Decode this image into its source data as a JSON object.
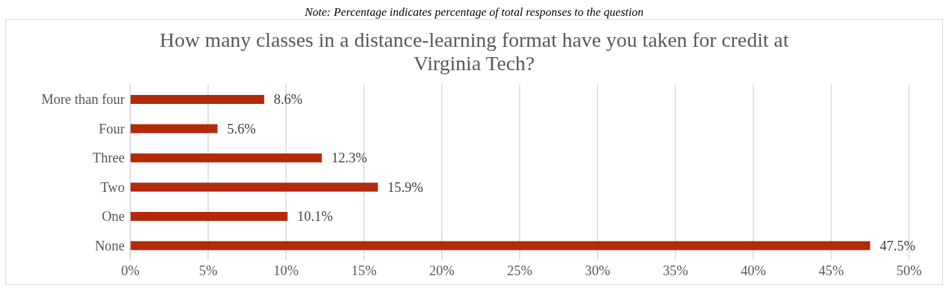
{
  "chart_data": {
    "type": "bar",
    "orientation": "horizontal",
    "title": "How many classes in a distance-learning format have you taken for credit at Virginia Tech?",
    "annotations": [
      "Note: Percentage indicates percentage of total responses to the question"
    ],
    "categories": [
      "More than four",
      "Four",
      "Three",
      "Two",
      "One",
      "None"
    ],
    "values": [
      8.6,
      5.6,
      12.3,
      15.9,
      10.1,
      47.5
    ],
    "value_labels": [
      "8.6%",
      "5.6%",
      "12.3%",
      "15.9%",
      "10.1%",
      "47.5%"
    ],
    "color": "#b22a0a",
    "xlim": [
      0,
      50
    ],
    "xticks": [
      {
        "value": 0,
        "label": "0%"
      },
      {
        "value": 5,
        "label": "5%"
      },
      {
        "value": 10,
        "label": "10%"
      },
      {
        "value": 15,
        "label": "15%"
      },
      {
        "value": 20,
        "label": "20%"
      },
      {
        "value": 25,
        "label": "25%"
      },
      {
        "value": 30,
        "label": "30%"
      },
      {
        "value": 35,
        "label": "35%"
      },
      {
        "value": 40,
        "label": "40%"
      },
      {
        "value": 45,
        "label": "45%"
      },
      {
        "value": 50,
        "label": "50%"
      }
    ],
    "grid": "x",
    "legend": false
  }
}
